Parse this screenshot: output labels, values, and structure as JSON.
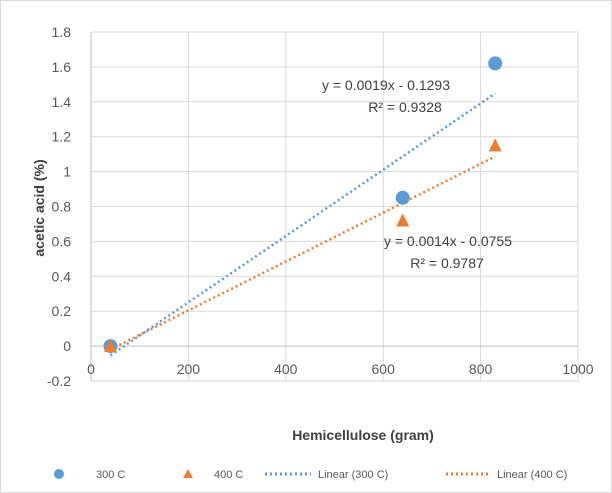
{
  "chart_data": {
    "type": "scatter",
    "xlabel": "Hemicellulose (gram)",
    "ylabel": "acetic acid (%)",
    "xlim": [
      0,
      1000
    ],
    "ylim": [
      -0.2,
      1.8
    ],
    "xticks": [
      "0",
      "200",
      "400",
      "600",
      "800",
      "1000"
    ],
    "yticks": [
      "-0.2",
      "0",
      "0.2",
      "0.4",
      "0.6",
      "0.8",
      "1",
      "1.2",
      "1.4",
      "1.6",
      "1.8"
    ],
    "grid": "horizontal and vertical",
    "legend_position": "bottom",
    "series": [
      {
        "name": "300 C",
        "marker": "circle",
        "color": "#5b9bd5",
        "x": [
          40,
          640,
          830
        ],
        "y": [
          0.0,
          0.85,
          1.62
        ]
      },
      {
        "name": "400 C",
        "marker": "triangle",
        "color": "#ed7d31",
        "x": [
          40,
          640,
          830
        ],
        "y": [
          0.0,
          0.72,
          1.15
        ]
      }
    ],
    "trendlines": [
      {
        "name": "Linear (300 C)",
        "color": "#5b9bd5",
        "slope": 0.0019,
        "intercept": -0.1293,
        "x_range": [
          40,
          830
        ],
        "equation": "y = 0.0019x - 0.1293",
        "r2": "R² = 0.9328"
      },
      {
        "name": "Linear (400 C)",
        "color": "#ed7d31",
        "slope": 0.0014,
        "intercept": -0.0755,
        "x_range": [
          40,
          830
        ],
        "equation": "y = 0.0014x - 0.0755",
        "r2": "R² = 0.9787"
      }
    ]
  }
}
